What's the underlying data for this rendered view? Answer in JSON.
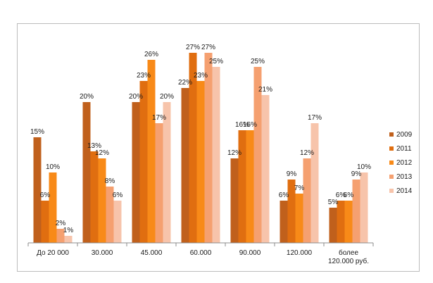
{
  "chart_data": {
    "type": "bar",
    "title": "",
    "xlabel": "",
    "ylabel": "",
    "ylim": [
      0,
      28
    ],
    "grid": false,
    "legend_position": "right",
    "categories": [
      "До 20 000",
      "30.000",
      "45.000",
      "60.000",
      "90.000",
      "120.000",
      "более 120.000 руб."
    ],
    "series": [
      {
        "name": "2009",
        "color": "#c0601c",
        "values": [
          15,
          20,
          20,
          22,
          12,
          6,
          5
        ],
        "labels": [
          "15%",
          "20%",
          "20%",
          "22%",
          "12%",
          "6%",
          "5%"
        ]
      },
      {
        "name": "2011",
        "color": "#e06e10",
        "values": [
          6,
          13,
          23,
          27,
          16,
          9,
          6
        ],
        "labels": [
          "6%",
          "13%",
          "23%",
          "27%",
          "16%",
          "9%",
          "6%"
        ]
      },
      {
        "name": "2012",
        "color": "#f88a18",
        "values": [
          10,
          12,
          26,
          23,
          16,
          7,
          6
        ],
        "labels": [
          "10%",
          "12%",
          "26%",
          "23%",
          "16%",
          "7%",
          "6%"
        ]
      },
      {
        "name": "2013",
        "color": "#f5a070",
        "values": [
          2,
          8,
          17,
          27,
          25,
          12,
          9
        ],
        "labels": [
          "2%",
          "8%",
          "17%",
          "27%",
          "25%",
          "12%",
          "9%"
        ]
      },
      {
        "name": "2014",
        "color": "#f7c4ab",
        "values": [
          1,
          6,
          20,
          25,
          21,
          17,
          10
        ],
        "labels": [
          "1%",
          "6%",
          "20%",
          "25%",
          "21%",
          "17%",
          "10%"
        ]
      }
    ]
  }
}
